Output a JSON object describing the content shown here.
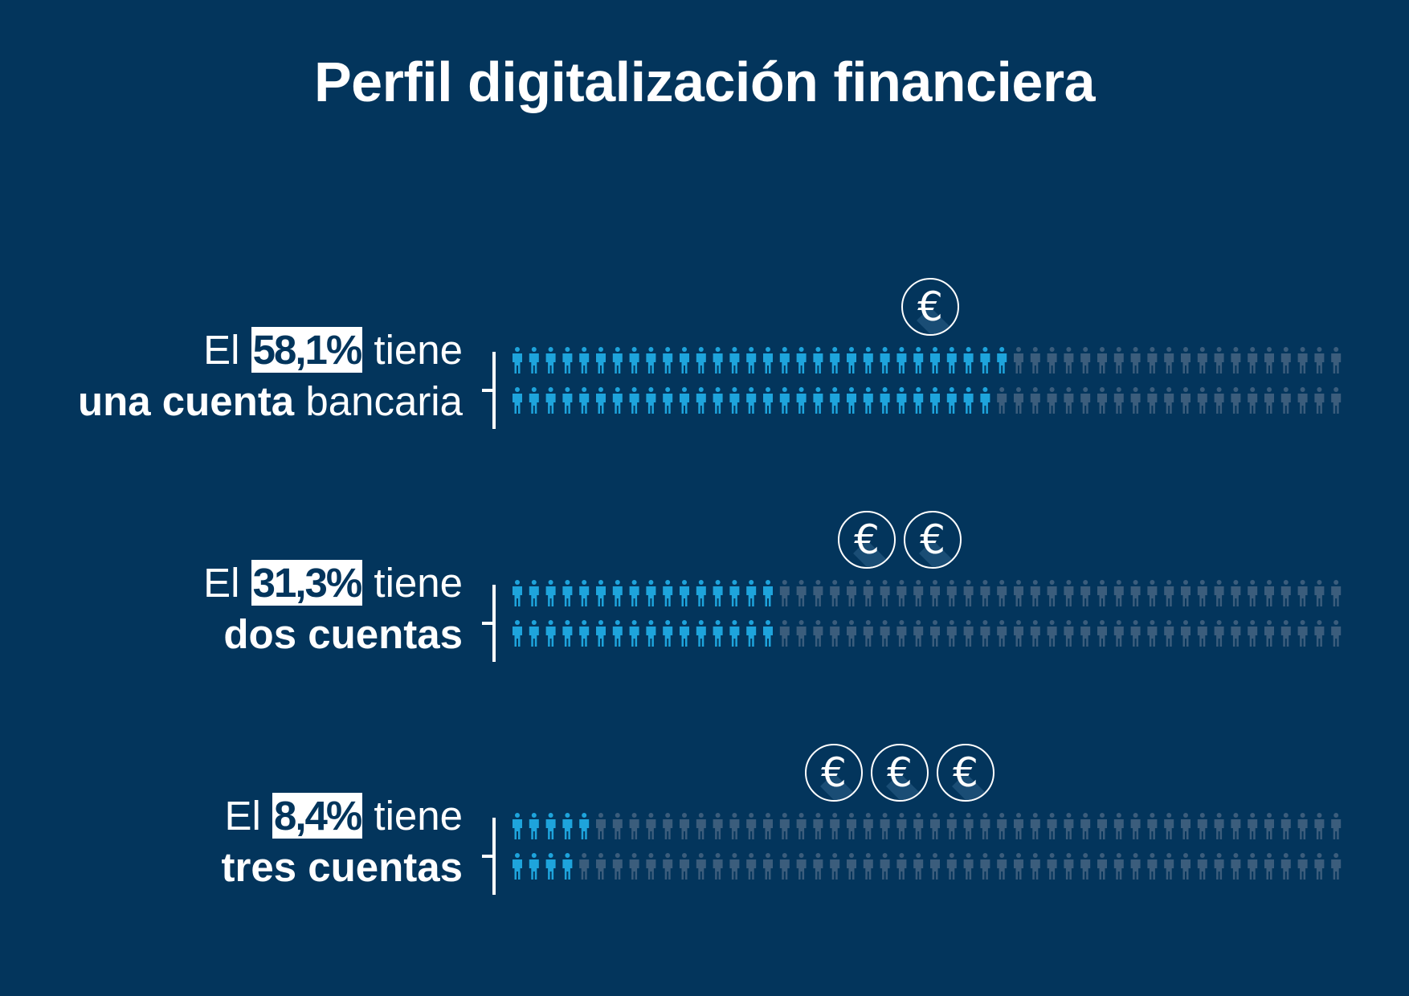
{
  "title": "Perfil digitalización financiera",
  "colors": {
    "background": "#03355c",
    "filled": "#1ea4dc",
    "empty": "#3b5d7c",
    "text": "#ffffff"
  },
  "icons": {
    "person": "person-icon",
    "coin": "euro-coin-icon"
  },
  "chart_data": {
    "type": "pictogram",
    "title": "Perfil digitalización financiera",
    "total_icons_per_row": 50,
    "series": [
      {
        "prefix": "El",
        "value_label": "58,1%",
        "value": 58.1,
        "suffix": "tiene",
        "line2_bold": "una cuenta",
        "line2_light": "bancaria",
        "coins": 1
      },
      {
        "prefix": "El",
        "value_label": "31,3%",
        "value": 31.3,
        "suffix": "tiene",
        "line2_bold": "dos cuentas",
        "line2_light": "",
        "coins": 2
      },
      {
        "prefix": "El",
        "value_label": "8,4%",
        "value": 8.4,
        "suffix": "tiene",
        "line2_bold": "tres cuentas",
        "line2_light": "",
        "coins": 3
      }
    ]
  }
}
